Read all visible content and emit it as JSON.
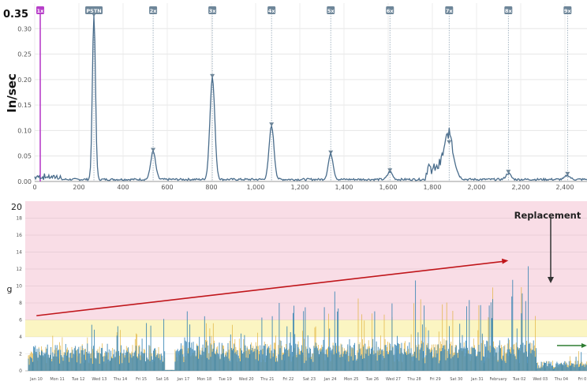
{
  "chart_data": [
    {
      "type": "line",
      "ylabel": "In/sec",
      "y_max_label": "0.35",
      "xlim": [
        0,
        2500
      ],
      "ylim": [
        0,
        0.35
      ],
      "x_ticks": [
        "0",
        "200",
        "400",
        "600",
        "800",
        "1,000",
        "1,200",
        "1,400",
        "1,600",
        "1,800",
        "2,000",
        "2,200",
        "2,400"
      ],
      "y_ticks": [
        "0.00",
        "0.05",
        "0.10",
        "0.15",
        "0.20",
        "0.25",
        "0.30"
      ],
      "grid": true,
      "colors": {
        "line": "#4a6d8c",
        "marker_line": "#8fa3b3",
        "marker_box": "#6e8699",
        "first_marker": "#b73fc9"
      },
      "markers": [
        {
          "label": "1x",
          "x": 25
        },
        {
          "label": "PSTN",
          "x": 268
        },
        {
          "label": "2x",
          "x": 536
        },
        {
          "label": "3x",
          "x": 804
        },
        {
          "label": "4x",
          "x": 1072
        },
        {
          "label": "5x",
          "x": 1340
        },
        {
          "label": "6x",
          "x": 1608
        },
        {
          "label": "7x",
          "x": 1876
        },
        {
          "label": "8x",
          "x": 2144
        },
        {
          "label": "9x",
          "x": 2412
        }
      ],
      "peaks": [
        {
          "x": 268,
          "y": 0.32
        },
        {
          "x": 536,
          "y": 0.055
        },
        {
          "x": 804,
          "y": 0.2
        },
        {
          "x": 1072,
          "y": 0.105
        },
        {
          "x": 1340,
          "y": 0.05
        },
        {
          "x": 1608,
          "y": 0.015
        },
        {
          "x": 1876,
          "y": 0.07
        },
        {
          "x": 2144,
          "y": 0.012
        },
        {
          "x": 2412,
          "y": 0.008
        }
      ]
    },
    {
      "type": "area",
      "ylabel": "g",
      "ylim": [
        0,
        20
      ],
      "y_top_label": "20",
      "y_ticks": [
        "0",
        "2",
        "4",
        "6",
        "8",
        "10",
        "12",
        "14",
        "16",
        "18"
      ],
      "x_ticks": [
        "Jan 10",
        "Mon 11",
        "Tue 12",
        "Wed 13",
        "Thu 14",
        "Fri 15",
        "Sat 16",
        "Jan 17",
        "Mon 18",
        "Tue 19",
        "Wed 20",
        "Thu 21",
        "Fri 22",
        "Sat 23",
        "Jan 24",
        "Mon 25",
        "Tue 26",
        "Wed 27",
        "Thu 28",
        "Fri 29",
        "Sat 30",
        "Jan 31",
        "February",
        "Tue 02",
        "Wed 03",
        "Thu 04",
        "Fri 0"
      ],
      "zones": [
        {
          "name": "alarm",
          "from": 6,
          "to": 20,
          "color": "#f9dde6"
        },
        {
          "name": "alert",
          "from": 4,
          "to": 6,
          "color": "#fbf5c2"
        },
        {
          "name": "normal",
          "from": 0,
          "to": 4,
          "color": "#ffffff"
        }
      ],
      "annotation": "Replacement",
      "trend": {
        "start": [
          0.02,
          6.5
        ],
        "end": [
          0.86,
          13
        ],
        "color": "#c0161b"
      },
      "after_trend_color": "#2e7d32",
      "series_colors": [
        "#2f7fb0",
        "#e0b13a"
      ]
    }
  ]
}
